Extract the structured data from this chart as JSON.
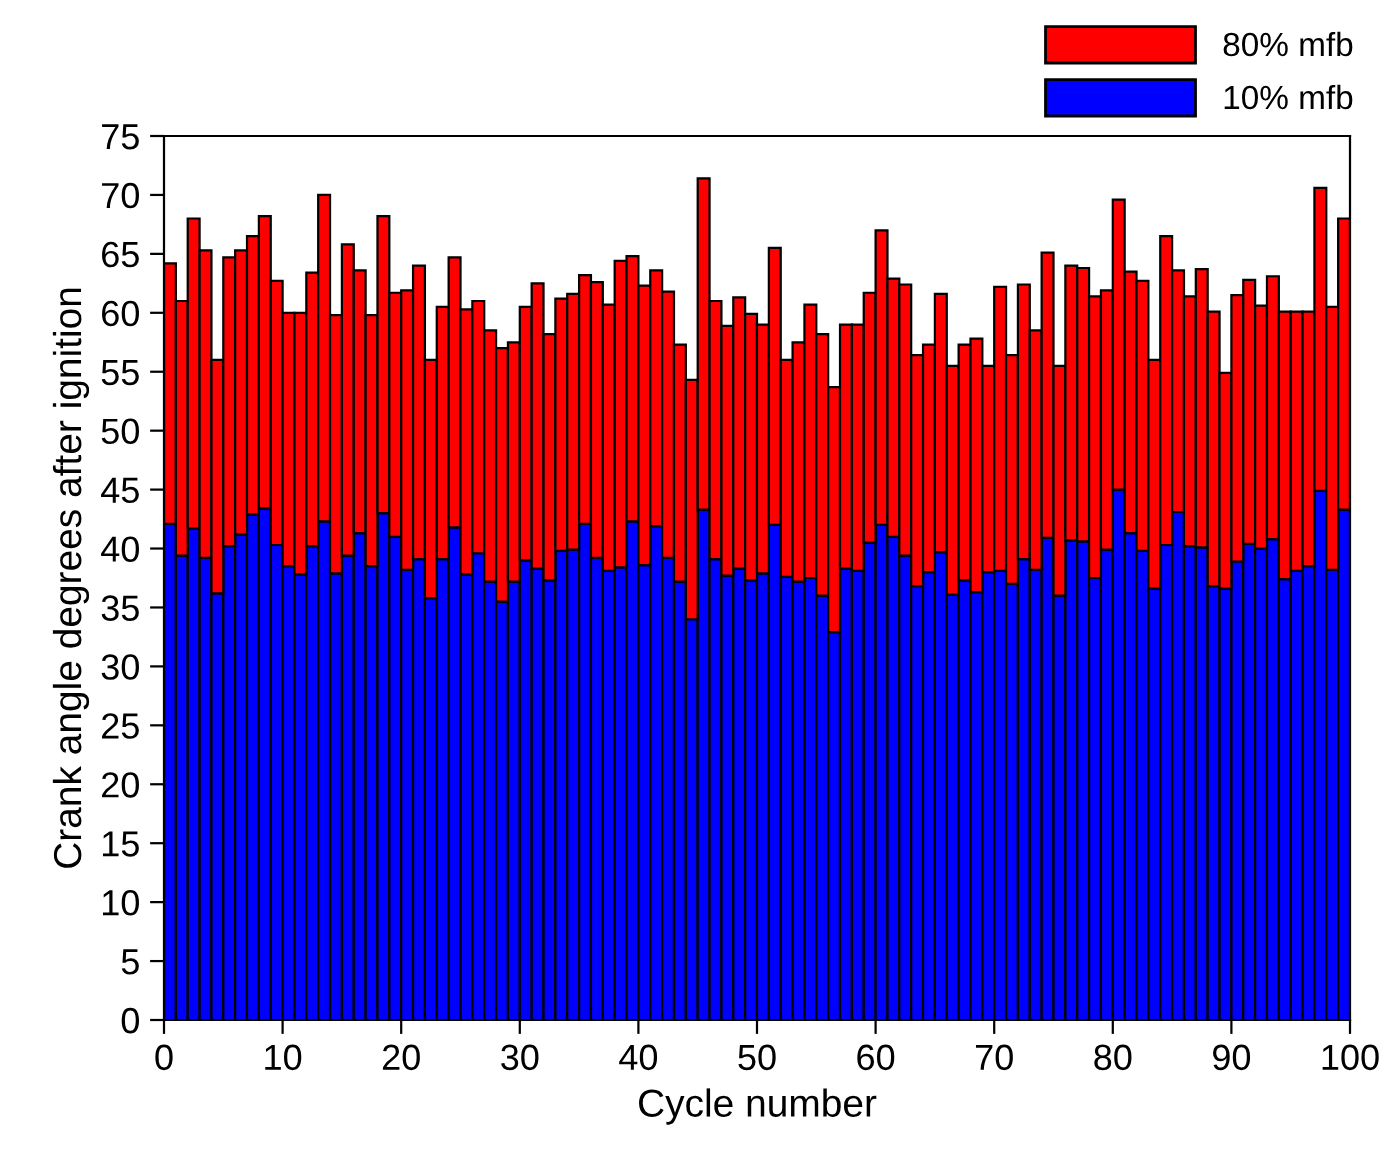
{
  "chart_data": {
    "type": "bar",
    "stacked": true,
    "xlabel": "Cycle number",
    "ylabel": "Crank angle degrees after ignition",
    "x": [
      1,
      2,
      3,
      4,
      5,
      6,
      7,
      8,
      9,
      10,
      11,
      12,
      13,
      14,
      15,
      16,
      17,
      18,
      19,
      20,
      21,
      22,
      23,
      24,
      25,
      26,
      27,
      28,
      29,
      30,
      31,
      32,
      33,
      34,
      35,
      36,
      37,
      38,
      39,
      40,
      41,
      42,
      43,
      44,
      45,
      46,
      47,
      48,
      49,
      50,
      51,
      52,
      53,
      54,
      55,
      56,
      57,
      58,
      59,
      60,
      61,
      62,
      63,
      64,
      65,
      66,
      67,
      68,
      69,
      70,
      71,
      72,
      73,
      74,
      75,
      76,
      77,
      78,
      79,
      80,
      81,
      82,
      83,
      84,
      85,
      86,
      87,
      88,
      89,
      90,
      91,
      92,
      93,
      94,
      95,
      96,
      97,
      98,
      99,
      100
    ],
    "xlim": [
      0,
      100
    ],
    "xticks": [
      0,
      10,
      20,
      30,
      40,
      50,
      60,
      70,
      80,
      90,
      100
    ],
    "ylim": [
      0,
      75
    ],
    "yticks": [
      0,
      5,
      10,
      15,
      20,
      25,
      30,
      35,
      40,
      45,
      50,
      55,
      60,
      65,
      70,
      75
    ],
    "grid": false,
    "legend": "top right",
    "series": [
      {
        "name": "10% mfb",
        "color": "#0000ff",
        "values": [
          42.1,
          39.4,
          41.7,
          39.2,
          36.2,
          40.2,
          41.2,
          42.9,
          43.4,
          40.3,
          38.5,
          37.8,
          40.2,
          42.3,
          37.9,
          39.4,
          41.3,
          38.5,
          43,
          41,
          38.2,
          39.1,
          35.8,
          39.1,
          41.8,
          37.8,
          39.6,
          37.2,
          35.5,
          37.2,
          39,
          38.3,
          37.3,
          39.8,
          39.9,
          42.1,
          39.2,
          38.1,
          38.4,
          42.3,
          38.6,
          41.9,
          39.2,
          37.2,
          34,
          43.3,
          39.1,
          37.7,
          38.3,
          37.3,
          37.9,
          42,
          37.6,
          37.2,
          37.5,
          36,
          32.9,
          38.3,
          38.1,
          40.5,
          42,
          41,
          39.4,
          36.8,
          38,
          39.7,
          36.1,
          37.3,
          36.3,
          38,
          38.1,
          37,
          39.1,
          38.2,
          40.9,
          36,
          40.7,
          40.6,
          37.5,
          39.9,
          45,
          41.3,
          39.8,
          36.6,
          40.3,
          43.1,
          40.2,
          40.1,
          36.8,
          36.6,
          38.9,
          40.4,
          40,
          40.8,
          37.4,
          38.1,
          38.5,
          44.9,
          38.2,
          43.3
        ]
      },
      {
        "name": "80% mfb",
        "color": "#ff0000",
        "values": [
          22.1,
          21.6,
          26.3,
          26.1,
          19.8,
          24.5,
          24.1,
          23.6,
          24.8,
          22.4,
          21.5,
          22.2,
          23.2,
          27.7,
          21.9,
          26.4,
          22.3,
          21.3,
          25.2,
          20.7,
          23.7,
          24.9,
          20.2,
          21.4,
          22.9,
          22.5,
          21.4,
          21.3,
          21.5,
          20.3,
          21.5,
          24.2,
          20.9,
          21.4,
          21.7,
          21.1,
          23.4,
          22.6,
          26,
          22.5,
          23.7,
          21.7,
          22.6,
          20.1,
          20.3,
          28.1,
          21.9,
          21.2,
          23,
          22.6,
          21.1,
          23.5,
          18.4,
          20.3,
          23.2,
          22.2,
          20.8,
          20.7,
          20.9,
          21.2,
          25,
          21.9,
          23,
          19.6,
          19.3,
          21.9,
          19.4,
          20,
          21.5,
          17.5,
          24.1,
          19.4,
          23.3,
          20.3,
          24.2,
          19.5,
          23.3,
          23.2,
          23.9,
          22,
          24.6,
          22.2,
          22.9,
          19.4,
          26.2,
          20.5,
          21.2,
          23.6,
          23.3,
          18.3,
          22.6,
          22.4,
          20.6,
          22.3,
          22.7,
          22,
          21.6,
          25.7,
          22.3,
          24.7
        ]
      }
    ]
  }
}
